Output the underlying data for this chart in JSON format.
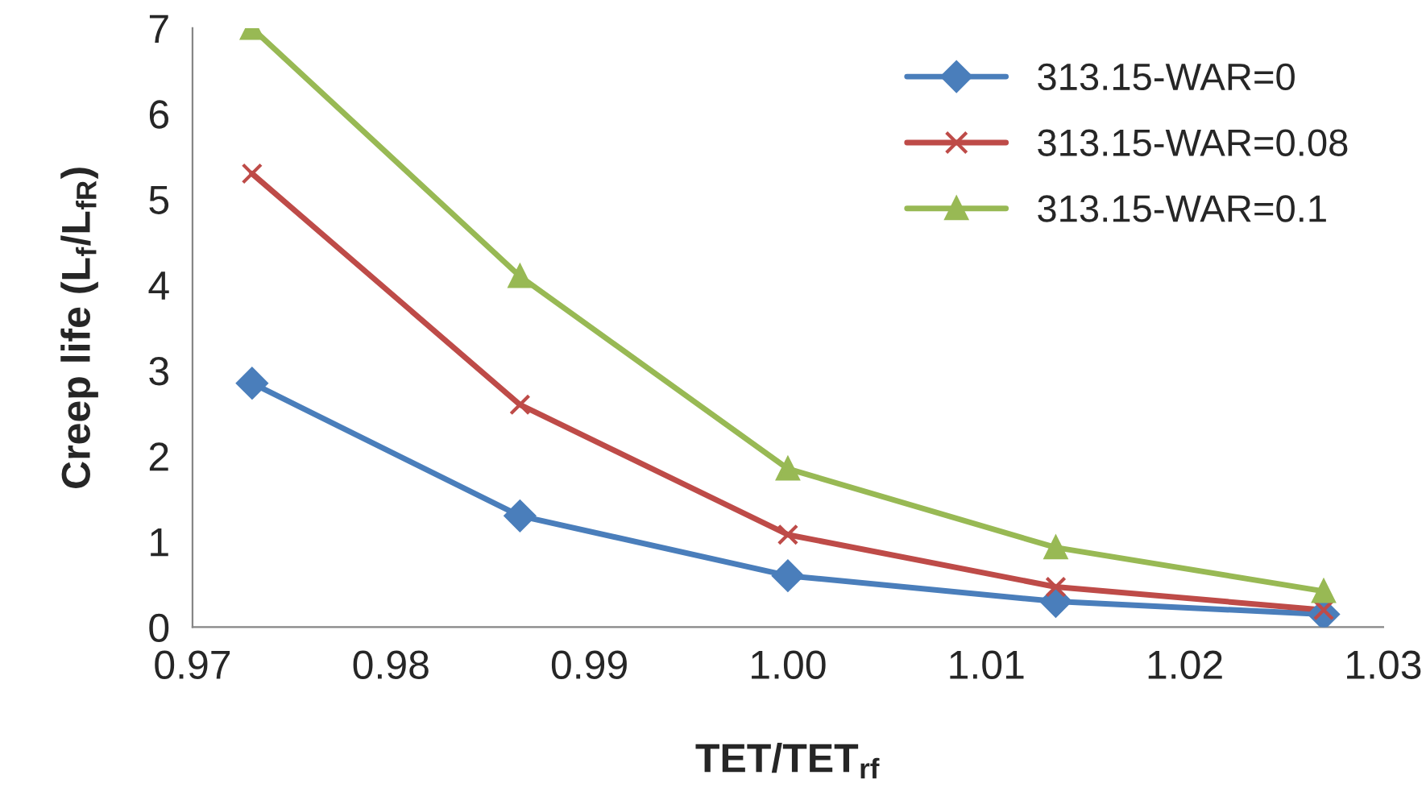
{
  "chart_data": {
    "type": "line",
    "xlabel": "TET/TET$_{rf}$",
    "ylabel": "Creep life (L$_{f}$/L$_{fR}$)",
    "x": [
      0.973,
      0.9865,
      1.0,
      1.0135,
      1.027
    ],
    "series": [
      {
        "name": "313.15-WAR=0",
        "color": "#4a7ebb",
        "marker": "diamond",
        "values": [
          2.85,
          1.3,
          0.6,
          0.3,
          0.15
        ]
      },
      {
        "name": "313.15-WAR=0.08",
        "color": "#be4b48",
        "marker": "cross",
        "values": [
          5.3,
          2.6,
          1.08,
          0.47,
          0.2
        ]
      },
      {
        "name": "313.15-WAR=0.1",
        "color": "#98b954",
        "marker": "triangle",
        "values": [
          7.0,
          4.1,
          1.85,
          0.93,
          0.42
        ]
      }
    ],
    "xlim": [
      0.97,
      1.03
    ],
    "xticks": [
      0.97,
      0.98,
      0.99,
      {
        "value": 1.0,
        "label": "1.00"
      },
      1.01,
      1.02,
      1.03
    ],
    "ylim": [
      0,
      7
    ],
    "yticks": [
      0,
      1,
      2,
      3,
      4,
      5,
      6,
      7
    ],
    "grid": false,
    "legend": "top right",
    "line_style": "solid"
  }
}
